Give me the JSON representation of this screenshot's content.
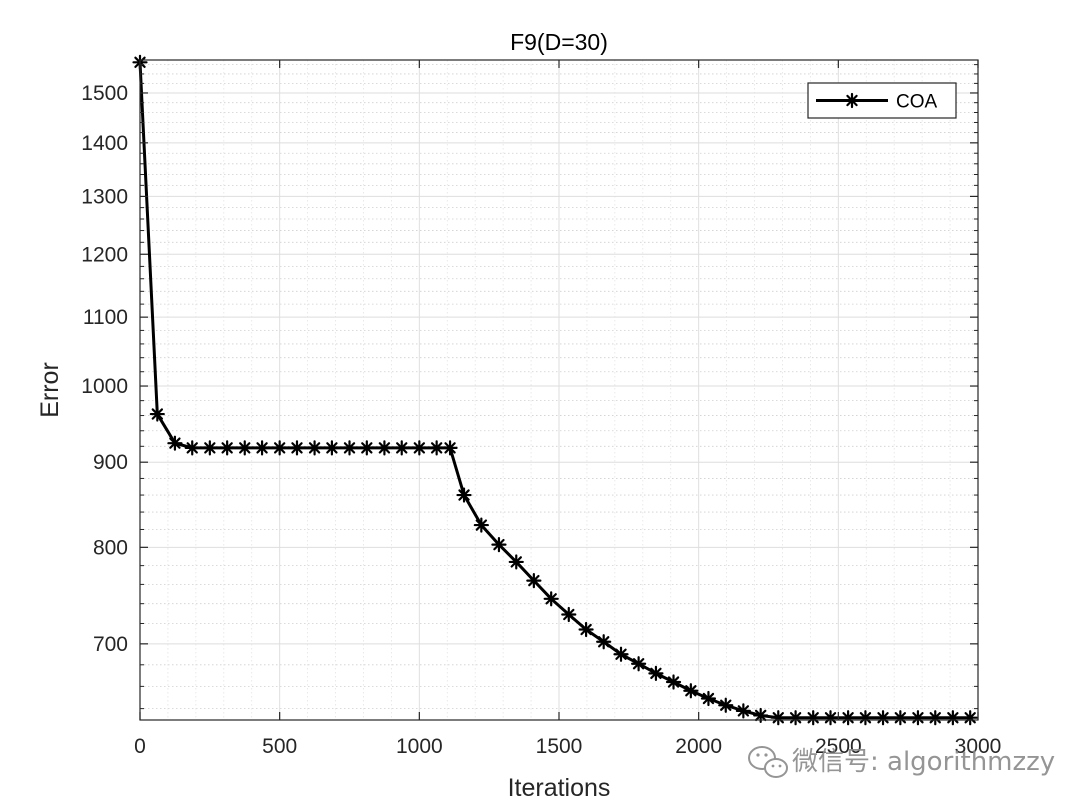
{
  "chart_data": {
    "type": "line",
    "title": "F9(D=30)",
    "xlabel": "Iterations",
    "ylabel": "Error",
    "xlim": [
      0,
      3000
    ],
    "ylim": [
      630,
      1570
    ],
    "y_scale": "log",
    "grid": true,
    "minor_grid": true,
    "legend_position": "top-right",
    "xticks": [
      0,
      500,
      1000,
      1500,
      2000,
      2500,
      3000
    ],
    "xtick_labels": [
      "0",
      "500",
      "1000",
      "1500",
      "2000",
      "2500",
      "3000"
    ],
    "yticks": [
      700,
      800,
      900,
      1000,
      1100,
      1200,
      1300,
      1400,
      1500
    ],
    "ytick_labels": [
      "700",
      "800",
      "900",
      "1000",
      "1100",
      "1200",
      "1300",
      "1400",
      "1500"
    ],
    "series": [
      {
        "name": "COA",
        "color": "#000000",
        "marker": "asterisk",
        "x": [
          0,
          62,
          125,
          187,
          250,
          312,
          375,
          437,
          500,
          562,
          625,
          687,
          750,
          812,
          875,
          937,
          1000,
          1062,
          1110,
          1160,
          1222,
          1285,
          1347,
          1410,
          1472,
          1535,
          1597,
          1660,
          1722,
          1785,
          1847,
          1910,
          1972,
          2035,
          2097,
          2160,
          2222,
          2285,
          2347,
          2410,
          2472,
          2535,
          2597,
          2660,
          2722,
          2785,
          2847,
          2910,
          2972
        ],
        "values": [
          1565,
          962,
          924,
          918,
          918,
          918,
          918,
          918,
          918,
          918,
          918,
          918,
          918,
          918,
          918,
          918,
          918,
          918,
          918,
          860,
          825,
          803,
          784,
          764,
          745,
          729,
          714,
          702,
          690,
          681,
          672,
          664,
          656,
          649,
          643,
          638,
          634,
          632,
          632,
          632,
          632,
          632,
          632,
          632,
          632,
          632,
          632,
          632,
          632
        ]
      }
    ]
  },
  "watermark": {
    "icon": "wechat-icon",
    "text": "微信号: algorithmzzy"
  }
}
